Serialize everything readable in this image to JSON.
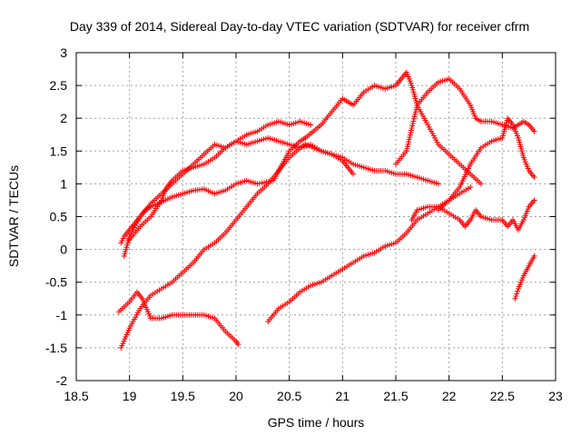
{
  "chart_data": {
    "type": "scatter",
    "title": "Day 339 of 2014, Sidereal Day-to-day VTEC variation (SDTVAR) for receiver cfrm",
    "xlabel": "GPS time / hours",
    "ylabel": "SDTVAR / TECUs",
    "xlim": [
      18.5,
      23
    ],
    "ylim": [
      -2,
      3
    ],
    "xticks": [
      "18.5",
      "19",
      "19.5",
      "20",
      "20.5",
      "21",
      "21.5",
      "22",
      "22.5",
      "23"
    ],
    "yticks": [
      "-2",
      "-1.5",
      "-1",
      "-0.5",
      "0",
      "0.5",
      "1",
      "1.5",
      "2",
      "2.5",
      "3"
    ],
    "grid": true,
    "marker": "+",
    "color": "#ff0000",
    "series": [
      {
        "x": [
          18.92,
          18.95,
          19.0,
          19.05,
          19.1,
          19.15,
          19.2,
          19.3,
          19.4,
          19.5,
          19.6,
          19.7,
          19.8,
          19.9,
          20.0,
          20.1,
          20.2,
          20.35,
          20.5,
          20.6,
          20.65
        ],
        "y": [
          0.1,
          0.2,
          0.3,
          0.4,
          0.5,
          0.6,
          0.65,
          0.72,
          0.8,
          0.85,
          0.9,
          0.92,
          0.85,
          0.9,
          1.0,
          1.05,
          1.0,
          1.05,
          1.5,
          1.65,
          1.7
        ]
      },
      {
        "x": [
          20.65,
          20.8,
          20.9,
          21.0,
          21.05,
          21.1,
          21.2,
          21.3,
          21.4,
          21.5,
          21.55,
          21.6,
          21.65,
          21.7,
          21.8,
          21.9,
          22.0,
          22.1,
          22.2,
          22.3
        ],
        "y": [
          1.7,
          1.9,
          2.1,
          2.3,
          2.25,
          2.2,
          2.4,
          2.5,
          2.45,
          2.5,
          2.6,
          2.7,
          2.5,
          2.2,
          1.9,
          1.6,
          1.45,
          1.3,
          1.15,
          1.0
        ]
      },
      {
        "x": [
          18.95,
          19.0,
          19.1,
          19.2,
          19.3,
          19.4,
          19.5,
          19.6,
          19.7,
          19.8,
          19.9,
          20.0,
          20.1,
          20.2,
          20.3,
          20.4,
          20.5,
          20.6,
          20.7,
          20.8,
          20.9,
          21.0,
          21.05,
          21.1
        ],
        "y": [
          -0.1,
          0.2,
          0.5,
          0.7,
          0.85,
          1.0,
          1.15,
          1.3,
          1.45,
          1.6,
          1.55,
          1.65,
          1.6,
          1.65,
          1.7,
          1.65,
          1.6,
          1.55,
          1.6,
          1.5,
          1.45,
          1.35,
          1.25,
          1.15
        ]
      },
      {
        "x": [
          18.92,
          19.0,
          19.1,
          19.2,
          19.3,
          19.4,
          19.5,
          19.6,
          19.7,
          19.8,
          19.9,
          20.0,
          20.1,
          20.2,
          20.3,
          20.4,
          20.5,
          20.6,
          20.65
        ],
        "y": [
          -1.5,
          -1.2,
          -0.9,
          -0.7,
          -0.6,
          -0.5,
          -0.35,
          -0.2,
          0.0,
          0.1,
          0.25,
          0.45,
          0.65,
          0.85,
          1.0,
          1.2,
          1.4,
          1.55,
          1.6
        ]
      },
      {
        "x": [
          20.65,
          20.8,
          20.9,
          21.0,
          21.1,
          21.2,
          21.3,
          21.4,
          21.5,
          21.6,
          21.7,
          21.8,
          21.9
        ],
        "y": [
          1.6,
          1.5,
          1.45,
          1.4,
          1.3,
          1.25,
          1.2,
          1.2,
          1.15,
          1.15,
          1.1,
          1.05,
          1.0
        ]
      },
      {
        "x": [
          18.9,
          19.0,
          19.07,
          19.12,
          19.2,
          19.3,
          19.4,
          19.5,
          19.6,
          19.7,
          19.8,
          19.9,
          20.0,
          20.02
        ],
        "y": [
          -0.95,
          -0.8,
          -0.65,
          -0.75,
          -1.05,
          -1.05,
          -1.0,
          -1.0,
          -1.0,
          -1.0,
          -1.05,
          -1.25,
          -1.4,
          -1.45
        ]
      },
      {
        "x": [
          20.3,
          20.4,
          20.5,
          20.6,
          20.7,
          20.8,
          20.9,
          21.0,
          21.1,
          21.2,
          21.3,
          21.4,
          21.5,
          21.6,
          21.7,
          21.8,
          21.9,
          22.0,
          22.1,
          22.2
        ],
        "y": [
          -1.1,
          -0.9,
          -0.8,
          -0.65,
          -0.55,
          -0.5,
          -0.4,
          -0.3,
          -0.2,
          -0.1,
          -0.05,
          0.05,
          0.1,
          0.25,
          0.45,
          0.55,
          0.65,
          0.75,
          0.85,
          0.95
        ]
      },
      {
        "x": [
          21.5,
          21.6,
          21.7,
          21.8,
          21.9,
          22.0,
          22.1,
          22.2,
          22.25,
          22.3,
          22.4,
          22.5,
          22.6,
          22.65,
          22.7,
          22.75,
          22.8
        ],
        "y": [
          1.3,
          1.5,
          2.2,
          2.4,
          2.55,
          2.6,
          2.45,
          2.2,
          2.0,
          1.95,
          1.95,
          1.9,
          1.85,
          1.9,
          1.95,
          1.9,
          1.8
        ]
      },
      {
        "x": [
          21.9,
          22.0,
          22.1,
          22.2,
          22.3,
          22.4,
          22.5,
          22.55,
          22.6,
          22.65,
          22.7,
          22.75,
          22.8
        ],
        "y": [
          0.6,
          0.75,
          0.95,
          1.3,
          1.55,
          1.65,
          1.7,
          2.0,
          1.9,
          1.7,
          1.4,
          1.2,
          1.1
        ]
      },
      {
        "x": [
          21.65,
          21.7,
          21.8,
          21.9,
          22.0,
          22.1,
          22.15,
          22.2,
          22.25,
          22.3,
          22.4,
          22.5,
          22.55,
          22.6,
          22.65,
          22.7,
          22.75,
          22.8
        ],
        "y": [
          0.45,
          0.6,
          0.65,
          0.65,
          0.55,
          0.45,
          0.35,
          0.45,
          0.6,
          0.5,
          0.45,
          0.45,
          0.35,
          0.45,
          0.3,
          0.45,
          0.65,
          0.75
        ]
      },
      {
        "x": [
          22.62,
          22.65,
          22.7,
          22.75,
          22.8
        ],
        "y": [
          -0.75,
          -0.6,
          -0.4,
          -0.25,
          -0.1
        ]
      },
      {
        "x": [
          19.0,
          19.1,
          19.2,
          19.3,
          19.35,
          19.4,
          19.5,
          19.6,
          19.7,
          19.8,
          19.9,
          20.0,
          20.1,
          20.2,
          20.3,
          20.4,
          20.5,
          20.6,
          20.7
        ],
        "y": [
          0.15,
          0.35,
          0.5,
          0.75,
          0.95,
          1.05,
          1.2,
          1.25,
          1.3,
          1.4,
          1.55,
          1.65,
          1.75,
          1.8,
          1.9,
          1.95,
          1.9,
          1.95,
          1.9
        ]
      }
    ]
  }
}
